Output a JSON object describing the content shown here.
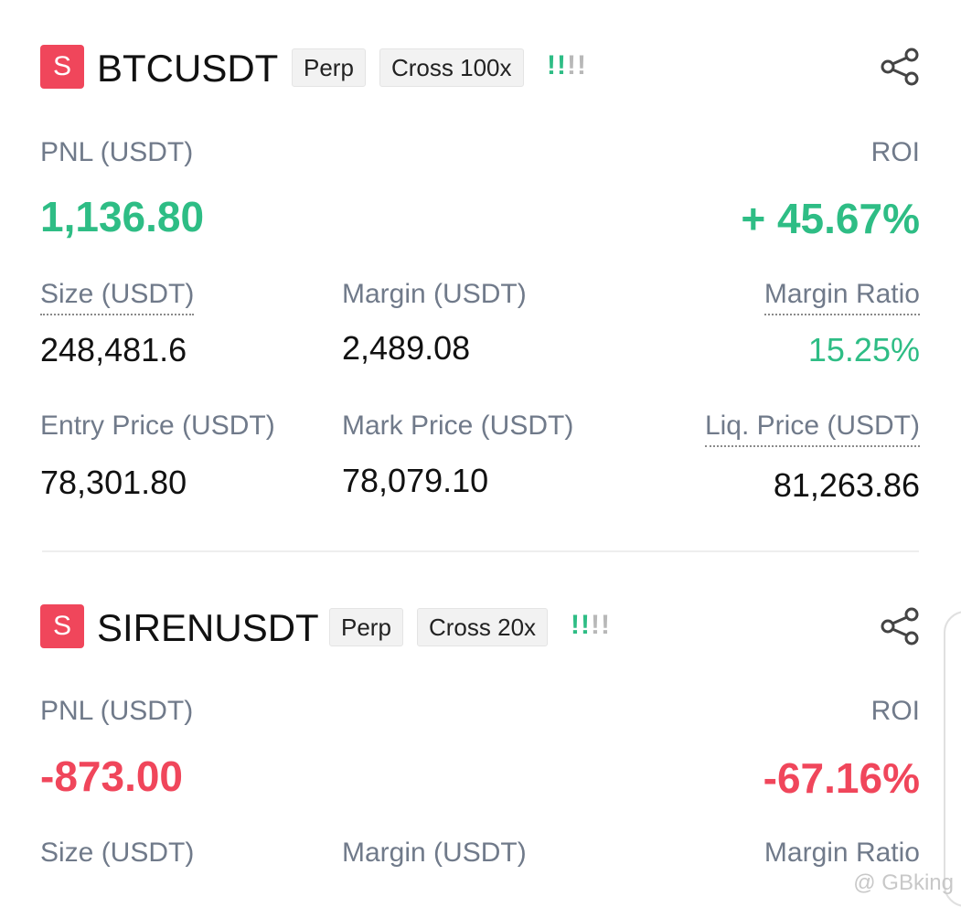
{
  "positions": [
    {
      "badge": "S",
      "symbol": "BTCUSDT",
      "tags": [
        "Perp",
        "Cross 100x"
      ],
      "signal": "!!!!",
      "pnl_label": "PNL (USDT)",
      "pnl": "1,136.80",
      "roi_label": "ROI",
      "roi": "+ 45.67%",
      "fields": [
        {
          "label": "Size (USDT)",
          "value": "248,481.6"
        },
        {
          "label": "Margin (USDT)",
          "value": "2,489.08"
        },
        {
          "label": "Margin Ratio",
          "value": "15.25%"
        },
        {
          "label": "Entry Price (USDT)",
          "value": "78,301.80"
        },
        {
          "label": "Mark Price (USDT)",
          "value": "78,079.10"
        },
        {
          "label": "Liq. Price (USDT)",
          "value": "81,263.86"
        }
      ]
    },
    {
      "badge": "S",
      "symbol": "SIRENUSDT",
      "tags": [
        "Perp",
        "Cross 20x"
      ],
      "signal": "!!!!",
      "pnl_label": "PNL (USDT)",
      "pnl": "-873.00",
      "roi_label": "ROI",
      "roi": "-67.16%",
      "fields": [
        {
          "label": "Size (USDT)"
        },
        {
          "label": "Margin (USDT)"
        },
        {
          "label": "Margin Ratio"
        }
      ]
    }
  ],
  "watermark": "@ GBking"
}
